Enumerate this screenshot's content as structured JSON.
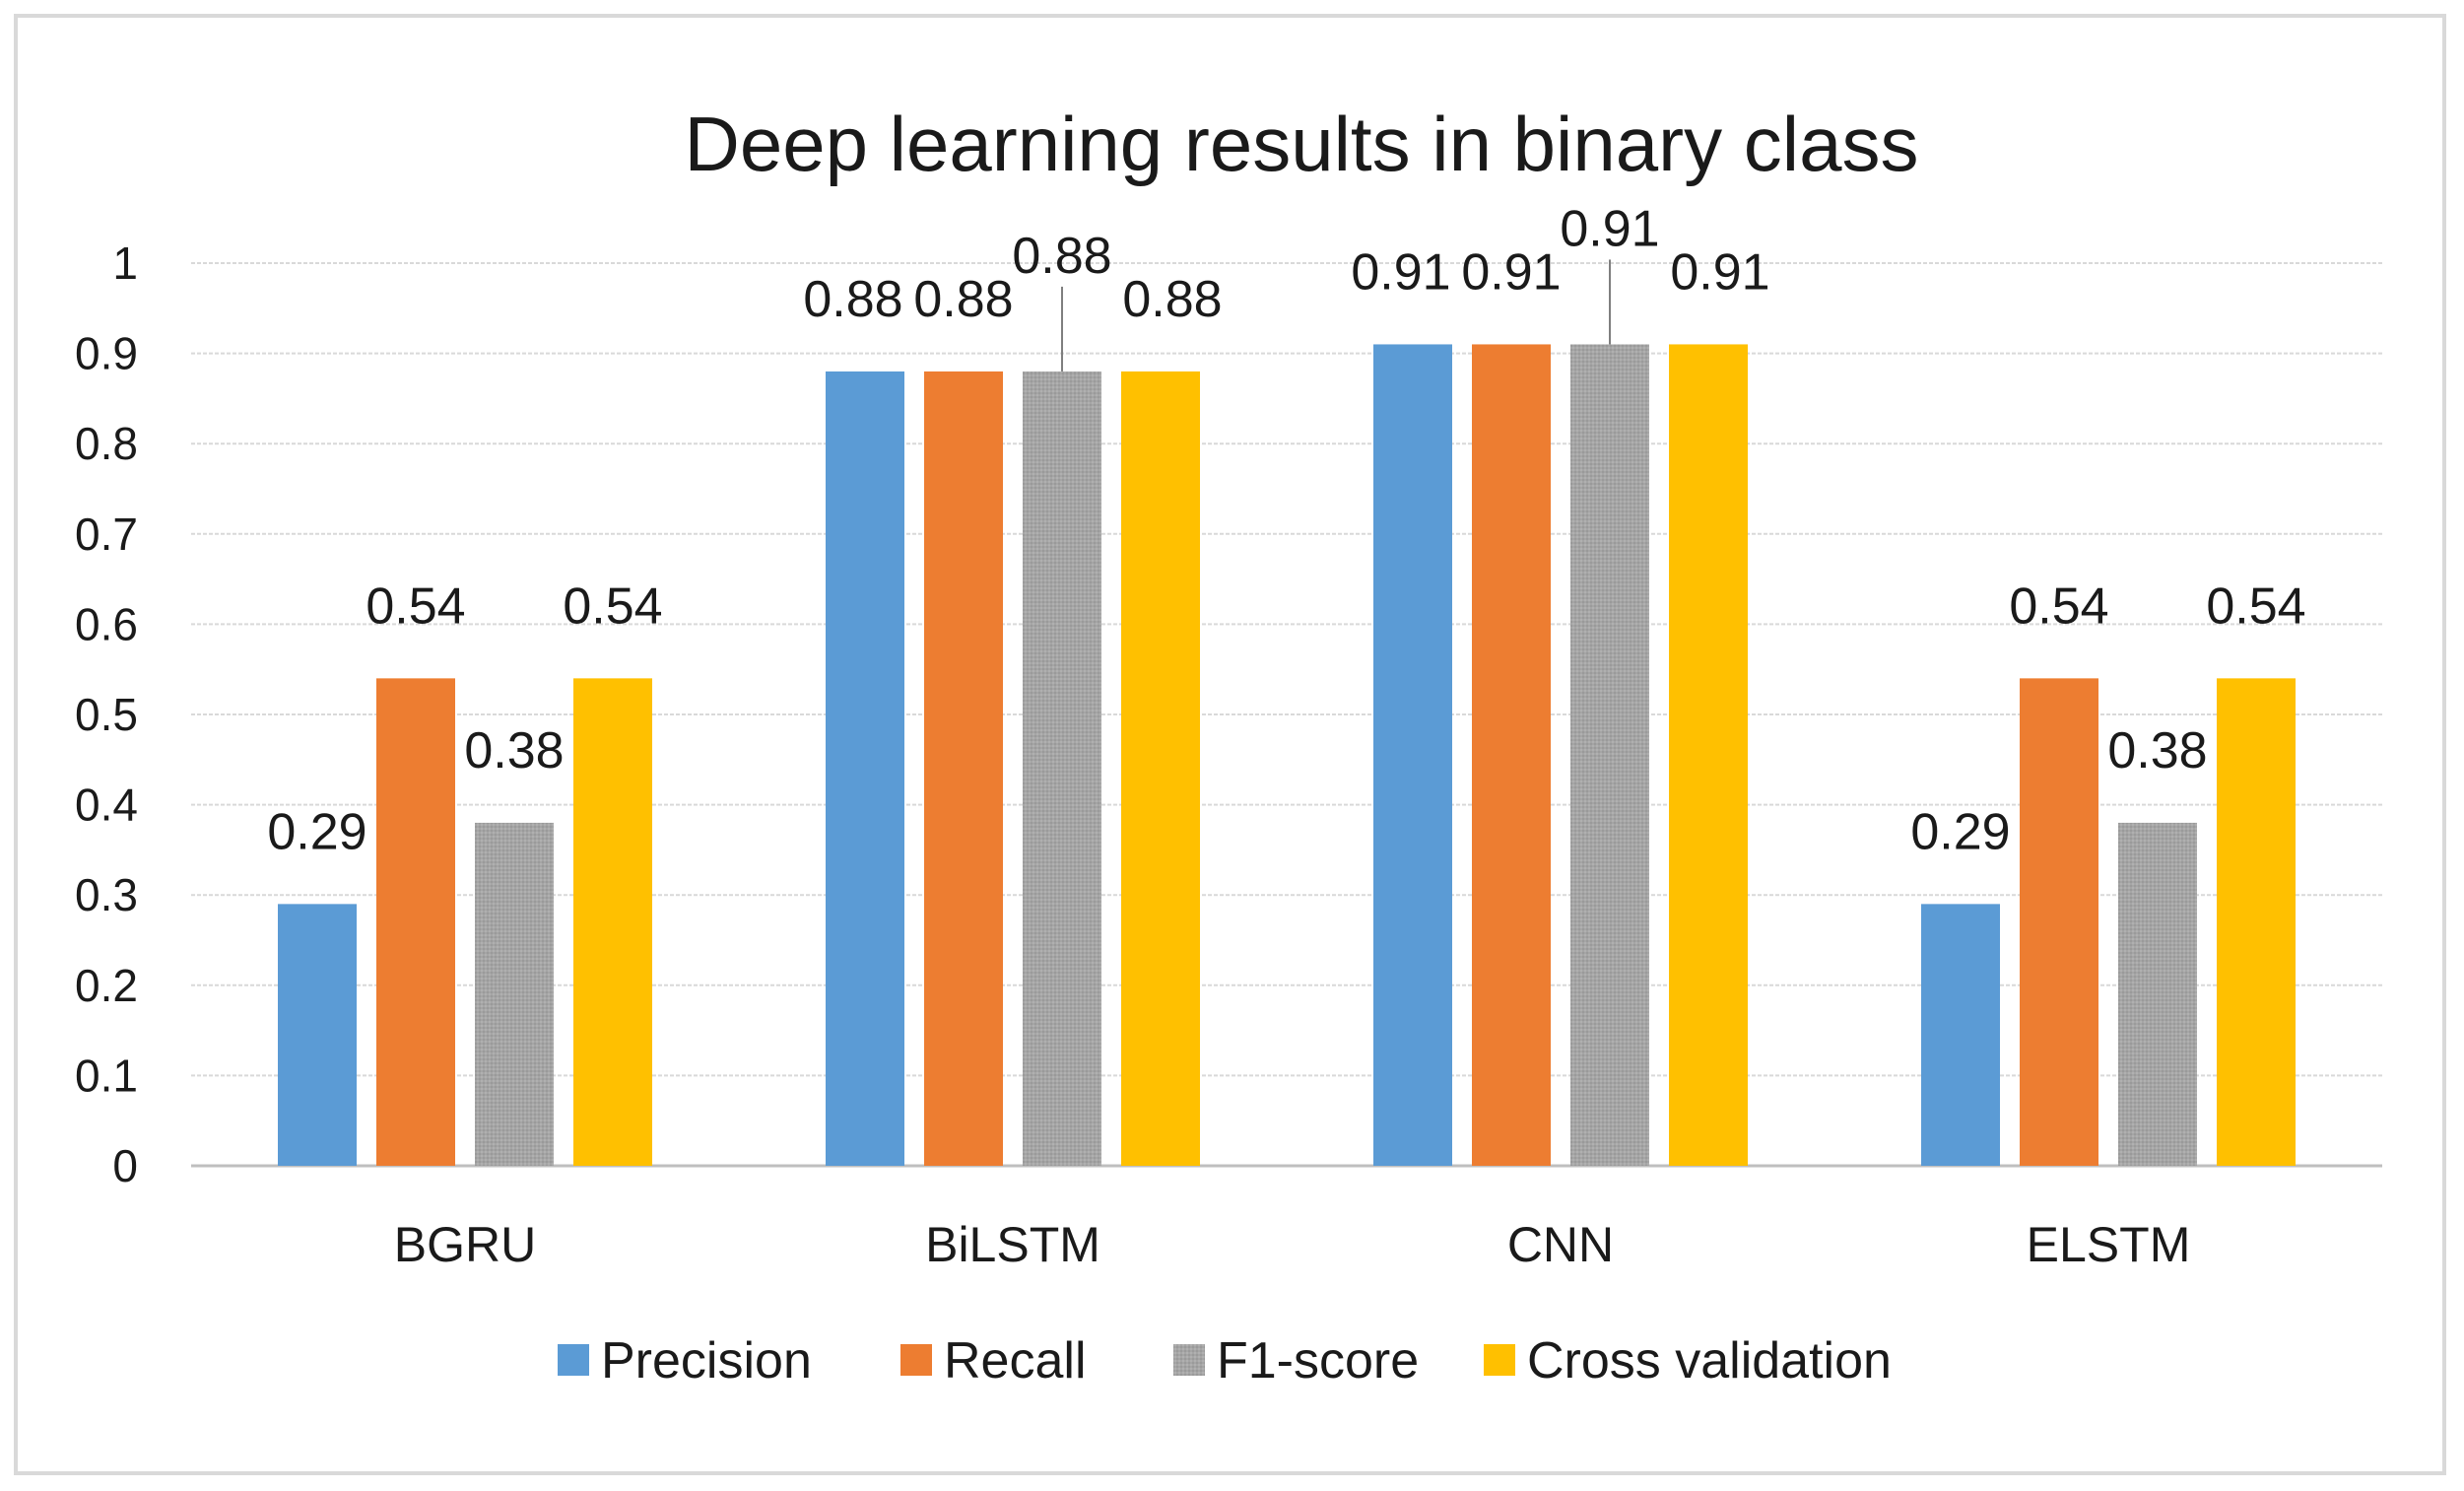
{
  "chart_data": {
    "type": "bar",
    "title": "Deep learning results in binary class",
    "categories": [
      "BGRU",
      "BiLSTM",
      "CNN",
      "ELSTM"
    ],
    "series": [
      {
        "name": "Precision",
        "color": "#5b9bd5",
        "values": [
          0.29,
          0.88,
          0.91,
          0.29
        ]
      },
      {
        "name": "Recall",
        "color": "#ed7d31",
        "values": [
          0.54,
          0.88,
          0.91,
          0.54
        ]
      },
      {
        "name": "F1-score",
        "color": "#a5a5a5",
        "values": [
          0.38,
          0.88,
          0.91,
          0.38
        ]
      },
      {
        "name": "Cross validation",
        "color": "#ffc000",
        "values": [
          0.54,
          0.88,
          0.91,
          0.54
        ]
      }
    ],
    "value_labels": [
      [
        "0.29",
        "0.88",
        "0.91",
        "0.29"
      ],
      [
        "0.54",
        "0.88",
        "0.91",
        "0.54"
      ],
      [
        "0.38",
        "0.88",
        "0.91",
        "0.38"
      ],
      [
        "0.54",
        "0.88",
        "0.91",
        "0.54"
      ]
    ],
    "y_ticks": [
      "0",
      "0.1",
      "0.2",
      "0.3",
      "0.4",
      "0.5",
      "0.6",
      "0.7",
      "0.8",
      "0.9",
      "1"
    ],
    "ylim": [
      0,
      1
    ],
    "xlabel": "",
    "ylabel": "",
    "grid": true,
    "legend_position": "bottom"
  }
}
